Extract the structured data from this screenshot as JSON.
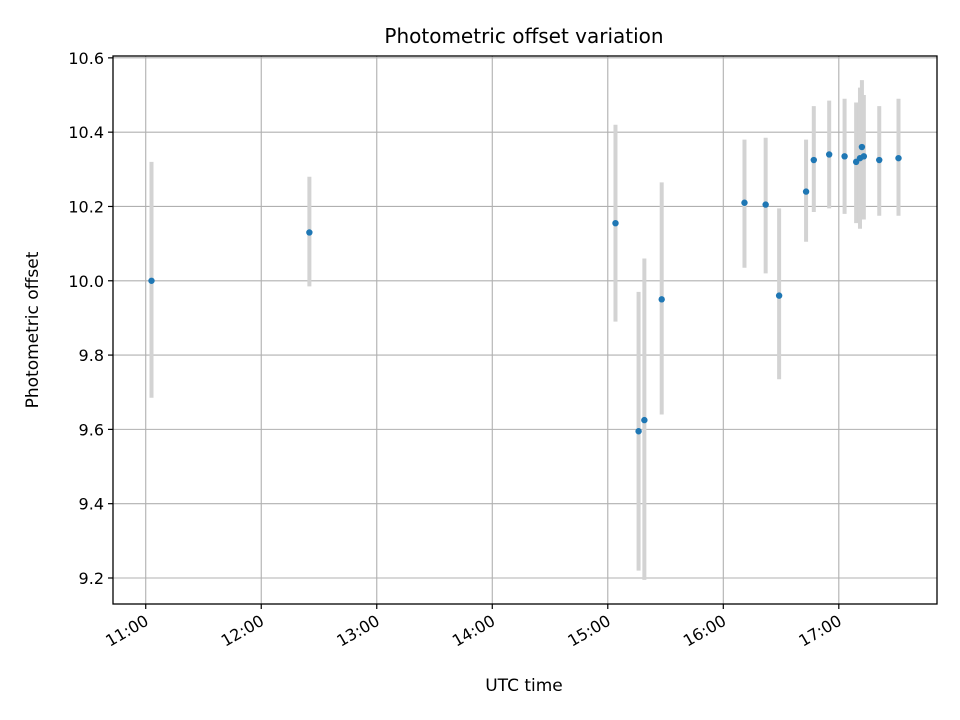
{
  "chart_data": {
    "type": "scatter",
    "title": "Photometric offset variation",
    "xlabel": "UTC time",
    "ylabel": "Photometric offset",
    "xlim": [
      "10:43",
      "17:51"
    ],
    "ylim": [
      9.13,
      10.605
    ],
    "x_ticks": [
      "11:00",
      "12:00",
      "13:00",
      "14:00",
      "15:00",
      "16:00",
      "17:00"
    ],
    "y_ticks": [
      "9.2",
      "9.4",
      "9.6",
      "9.8",
      "10.0",
      "10.2",
      "10.4",
      "10.6"
    ],
    "grid": true,
    "colors": {
      "point": "#1f77b4",
      "errorbar": "#d3d3d3",
      "grid": "#b0b0b0",
      "axes": "#000000"
    },
    "series": [
      {
        "x": [
          "11:03",
          "12:25",
          "15:04",
          "15:16",
          "15:19",
          "15:28",
          "16:11",
          "16:22",
          "16:29",
          "16:43",
          "16:47",
          "16:55",
          "17:03",
          "17:09",
          "17:11",
          "17:12",
          "17:13",
          "17:21",
          "17:31"
        ],
        "y": [
          10.0,
          10.13,
          10.155,
          9.595,
          9.625,
          9.95,
          10.21,
          10.205,
          9.96,
          10.24,
          10.325,
          10.34,
          10.335,
          10.32,
          10.33,
          10.36,
          10.335,
          10.325,
          10.33
        ],
        "yerr_low": [
          9.685,
          9.985,
          9.89,
          9.22,
          9.195,
          9.64,
          10.035,
          10.02,
          9.735,
          10.105,
          10.185,
          10.195,
          10.18,
          10.155,
          10.14,
          10.17,
          10.165,
          10.175,
          10.175
        ],
        "yerr_high": [
          10.32,
          10.28,
          10.42,
          9.97,
          10.06,
          10.265,
          10.38,
          10.385,
          10.195,
          10.38,
          10.47,
          10.485,
          10.49,
          10.48,
          10.52,
          10.54,
          10.5,
          10.47,
          10.49
        ]
      }
    ]
  }
}
